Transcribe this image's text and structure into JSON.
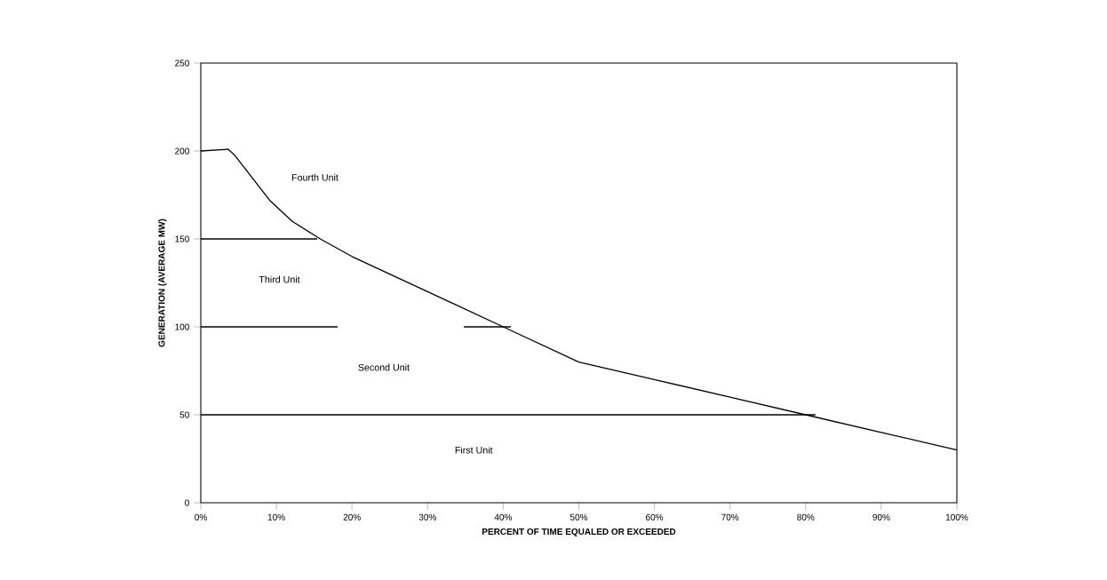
{
  "chart_data": {
    "type": "line",
    "xlabel": "PERCENT OF TIME EQUALED OR EXCEEDED",
    "ylabel": "GENERATION (AVERAGE MW)",
    "series": [
      {
        "color": "#000000",
        "x": [
          0,
          3.6,
          4.4,
          9.1,
          12.1,
          15.8,
          20,
          30,
          40,
          50,
          60,
          70,
          80,
          90,
          100
        ],
        "values": [
          200,
          201,
          198,
          172,
          160,
          150,
          140,
          120,
          100,
          80,
          70,
          60,
          50,
          40,
          30
        ]
      },
      {
        "color": "#000000",
        "x": [
          0,
          15.4
        ],
        "values": [
          150,
          150
        ]
      },
      {
        "color": "#000000",
        "x": [
          0,
          18.1
        ],
        "values": [
          100,
          100
        ]
      },
      {
        "color": "#000000",
        "x": [
          34.8,
          41
        ],
        "values": [
          100,
          100
        ]
      },
      {
        "color": "#000000",
        "x": [
          0,
          81.3
        ],
        "values": [
          50,
          50
        ]
      }
    ],
    "line_style": "solid",
    "xlim": [
      0,
      100
    ],
    "xticks": [
      {
        "value": 0,
        "label": "0%"
      },
      {
        "value": 10,
        "label": "10%"
      },
      {
        "value": 20,
        "label": "20%"
      },
      {
        "value": 30,
        "label": "30%"
      },
      {
        "value": 40,
        "label": "40%"
      },
      {
        "value": 50,
        "label": "50%"
      },
      {
        "value": 60,
        "label": "60%"
      },
      {
        "value": 70,
        "label": "70%"
      },
      {
        "value": 80,
        "label": "80%"
      },
      {
        "value": 90,
        "label": "90%"
      },
      {
        "value": 100,
        "label": "100%"
      }
    ],
    "ylim": [
      0,
      250
    ],
    "yticks": [
      0,
      50,
      100,
      150,
      200,
      250
    ],
    "annotations": [
      "Fourth Unit",
      "Third Unit",
      "Second Unit",
      "First Unit"
    ]
  }
}
